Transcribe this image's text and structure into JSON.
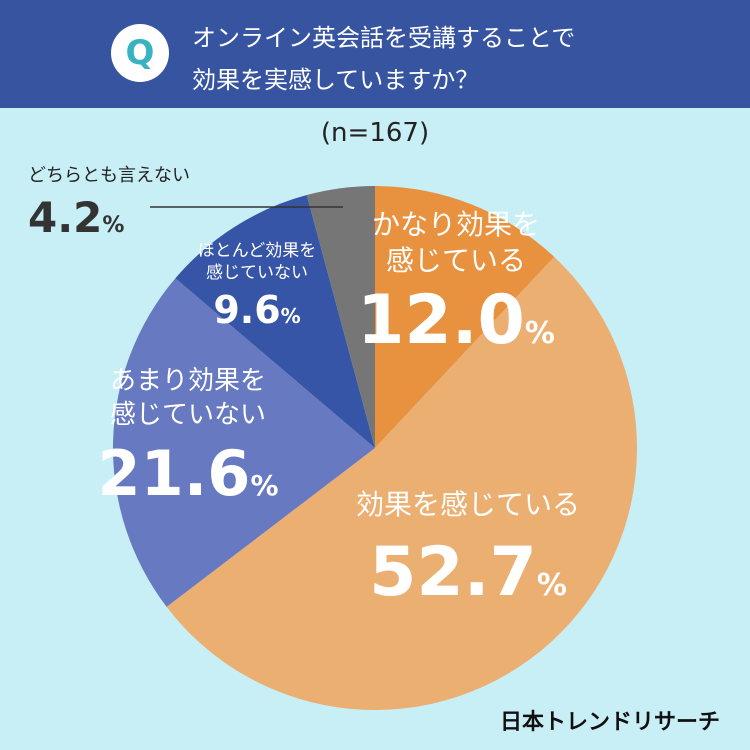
{
  "header": {
    "badge": "Q",
    "title_line1": "オンライン英会話を受講することで",
    "title_line2": "効果を実感していますか？"
  },
  "sample_size": "(n=167)",
  "colors": {
    "header_bg": "#3654a0",
    "background": "#c8eef6"
  },
  "chart_data": {
    "type": "pie",
    "start": "12 o'clock, clockwise",
    "slices": [
      {
        "name": "かなり効果を感じている",
        "line1": "かなり効果を",
        "line2": "感じている",
        "value": 12.0,
        "display": "12.0",
        "color": "#e8913e"
      },
      {
        "name": "効果を感じている",
        "line1": "効果を感じている",
        "line2": "",
        "value": 52.7,
        "display": "52.7",
        "color": "#ebaf72"
      },
      {
        "name": "あまり効果を感じていない",
        "line1": "あまり効果を",
        "line2": "感じていない",
        "value": 21.6,
        "display": "21.6",
        "color": "#6779c1"
      },
      {
        "name": "ほとんど効果を感じていない",
        "line1": "ほとんど効果を",
        "line2": "感じていない",
        "value": 9.6,
        "display": "9.6",
        "color": "#3755a6"
      },
      {
        "name": "どちらとも言えない",
        "line1": "どちらとも言えない",
        "line2": "",
        "value": 4.2,
        "display": "4.2",
        "color": "#767676"
      }
    ],
    "percent_sign": "%"
  },
  "logo": "日本トレンドリサーチ"
}
